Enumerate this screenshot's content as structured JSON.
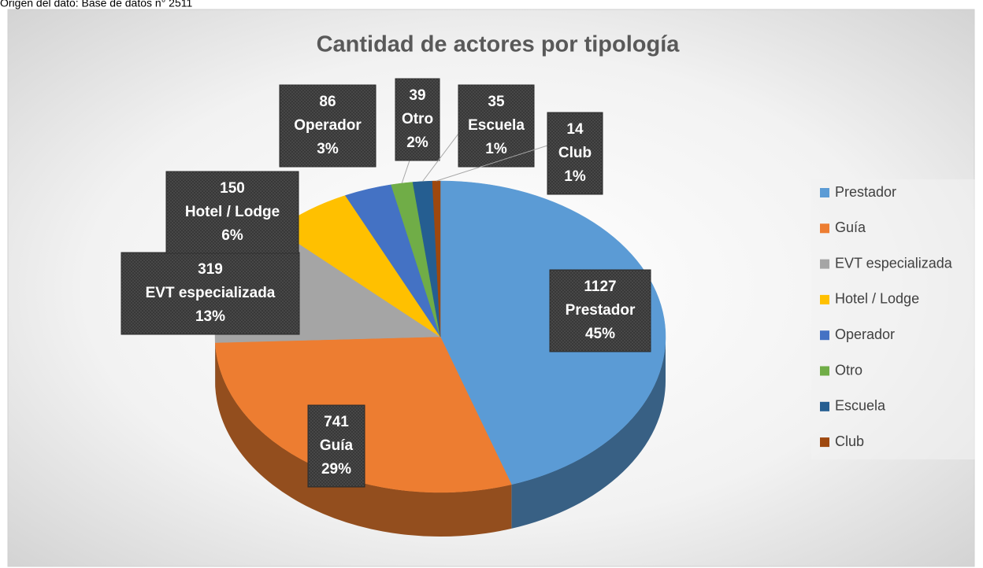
{
  "chart_data": {
    "type": "pie",
    "note": "Origen del dato: Base de datos n° 2511",
    "title": "Cantidad de actores por tipología",
    "categories": [
      "Prestador",
      "Guía",
      "EVT especializada",
      "Hotel / Lodge",
      "Operador",
      "Otro",
      "Escuela",
      "Club"
    ],
    "values": [
      1127,
      741,
      319,
      150,
      86,
      39,
      35,
      14
    ],
    "percentage_labels": [
      "45%",
      "29%",
      "13%",
      "6%",
      "3%",
      "2%",
      "1%",
      "1%"
    ],
    "colors": [
      "#5B9BD5",
      "#ED7D31",
      "#A5A5A5",
      "#FFC000",
      "#4472C4",
      "#70AD47",
      "#255E91",
      "#9E480E"
    ],
    "legend": "right"
  }
}
